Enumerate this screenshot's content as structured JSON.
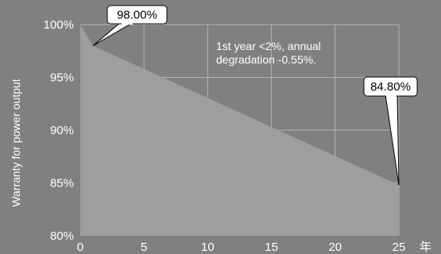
{
  "chart_data": {
    "type": "area",
    "ylabel": "Warranty for power output",
    "xunit": "年",
    "xlim": [
      0,
      25
    ],
    "ylim": [
      80,
      100
    ],
    "x_ticks": [
      0,
      5,
      10,
      15,
      20,
      25
    ],
    "x_tick_labels": [
      "0",
      "5",
      "10",
      "15",
      "20",
      "25"
    ],
    "y_ticks": [
      80,
      85,
      90,
      95,
      100
    ],
    "y_tick_labels": [
      "80%",
      "85%",
      "90%",
      "95%",
      "100%"
    ],
    "grid": true,
    "series": [
      {
        "x": [
          0,
          1,
          25
        ],
        "y": [
          100,
          98.0,
          84.8
        ]
      }
    ],
    "annotation": [
      "1st year <2%, annual",
      "degradation -0.55%."
    ],
    "callouts": [
      {
        "x": 1,
        "y": 98.0,
        "label": "98.00%"
      },
      {
        "x": 25,
        "y": 84.8,
        "label": "84.80%"
      }
    ],
    "colors": {
      "background": "#808083",
      "area_fill": "#9e9ea0",
      "grid": "#b4b4b6",
      "text": "#ffffff",
      "callout_fill": "#ffffff",
      "callout_text": "#000000"
    }
  }
}
